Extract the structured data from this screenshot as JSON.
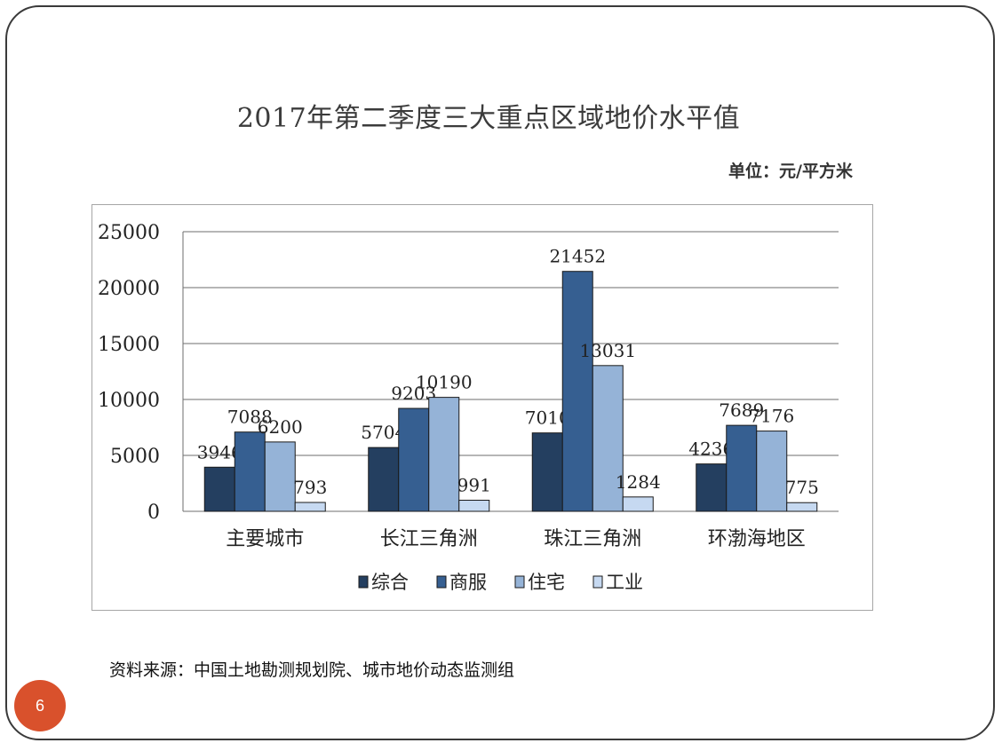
{
  "slide": {
    "title": "2017年第二季度三大重点区域地价水平值",
    "unit": "单位：元/平方米",
    "source": "资料来源：中国土地勘测规划院、城市地价动态监测组",
    "page_number": "6"
  },
  "chart_data": {
    "type": "bar",
    "title": "",
    "xlabel": "",
    "ylabel": "",
    "ylim": [
      0,
      25000
    ],
    "yticks": [
      0,
      5000,
      10000,
      15000,
      20000,
      25000
    ],
    "grid": true,
    "legend_position": "bottom",
    "categories": [
      "主要城市",
      "长江三角洲",
      "珠江三角洲",
      "环渤海地区"
    ],
    "series": [
      {
        "name": "综合",
        "color": "#243f60",
        "values": [
          3946,
          5704,
          7010,
          4236
        ]
      },
      {
        "name": "商服",
        "color": "#365f91",
        "values": [
          7088,
          9203,
          21452,
          7689
        ]
      },
      {
        "name": "住宅",
        "color": "#95b3d7",
        "values": [
          6200,
          10190,
          13031,
          7176
        ]
      },
      {
        "name": "工业",
        "color": "#c6d9f1",
        "values": [
          793,
          991,
          1284,
          775
        ]
      }
    ]
  }
}
